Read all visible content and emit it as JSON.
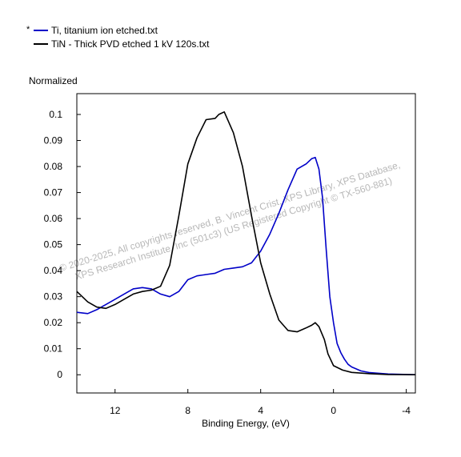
{
  "legend": {
    "marker": "*",
    "entries": [
      {
        "label": "Ti, titanium ion etched.txt",
        "color": "#0000c8"
      },
      {
        "label": "TiN - Thick PVD etched 1 kV 120s.txt",
        "color": "#000000"
      }
    ]
  },
  "watermark": {
    "line1": "©  2020-2025,  All copyrights reserved,   B. Vincent Crist,  XPS Library, XPS Database,",
    "line2": "XPS Research Institute, Inc (501c3)   (US Registered Copyright © TX-560-881)"
  },
  "chart_data": {
    "type": "line",
    "title": "",
    "xlabel": "Binding Energy, (eV)",
    "ylabel": "Normalized",
    "xlim": [
      14.1,
      -4.5
    ],
    "x_reversed": true,
    "ylim": [
      -0.007,
      0.108
    ],
    "xticks": [
      12,
      8,
      4,
      0,
      -4
    ],
    "xtick_labels": [
      "12",
      "8",
      "4",
      "0",
      "-4"
    ],
    "yticks": [
      0,
      0.01,
      0.02,
      0.03,
      0.04,
      0.05,
      0.06,
      0.07,
      0.08,
      0.09,
      0.1
    ],
    "ytick_labels": [
      "0",
      "0.01",
      "0.02",
      "0.03",
      "0.04",
      "0.05",
      "0.06",
      "0.07",
      "0.08",
      "0.09",
      "0.1"
    ],
    "grid": false,
    "legend_position": "top-left",
    "series": [
      {
        "name": "Ti, titanium ion etched.txt",
        "color": "#0000c8",
        "x": [
          14.1,
          13.5,
          13.0,
          12.5,
          12.0,
          11.5,
          11.0,
          10.5,
          10.0,
          9.5,
          9.0,
          8.5,
          8.0,
          7.5,
          7.0,
          6.5,
          6.0,
          5.5,
          5.0,
          4.5,
          4.0,
          3.5,
          3.0,
          2.5,
          2.0,
          1.5,
          1.2,
          1.0,
          0.8,
          0.6,
          0.4,
          0.2,
          0.0,
          -0.2,
          -0.4,
          -0.6,
          -0.8,
          -1.0,
          -1.5,
          -2.0,
          -3.0,
          -4.5
        ],
        "y": [
          0.024,
          0.0235,
          0.025,
          0.027,
          0.029,
          0.031,
          0.033,
          0.0335,
          0.033,
          0.031,
          0.03,
          0.032,
          0.0365,
          0.038,
          0.0385,
          0.039,
          0.0405,
          0.041,
          0.0415,
          0.043,
          0.0475,
          0.054,
          0.062,
          0.071,
          0.079,
          0.081,
          0.083,
          0.0835,
          0.079,
          0.068,
          0.048,
          0.03,
          0.02,
          0.012,
          0.0085,
          0.006,
          0.004,
          0.003,
          0.0015,
          0.0008,
          0.0003,
          0.0
        ]
      },
      {
        "name": "TiN - Thick PVD etched 1 kV 120s.txt",
        "color": "#000000",
        "x": [
          14.1,
          13.5,
          13.0,
          12.5,
          12.0,
          11.5,
          11.0,
          10.5,
          10.0,
          9.5,
          9.0,
          8.5,
          8.0,
          7.5,
          7.0,
          6.5,
          6.3,
          6.0,
          5.5,
          5.0,
          4.5,
          4.0,
          3.5,
          3.0,
          2.5,
          2.0,
          1.5,
          1.2,
          1.0,
          0.8,
          0.5,
          0.3,
          0.0,
          -0.5,
          -1.0,
          -2.0,
          -3.0,
          -4.5
        ],
        "y": [
          0.032,
          0.028,
          0.026,
          0.0255,
          0.027,
          0.029,
          0.031,
          0.032,
          0.0325,
          0.034,
          0.042,
          0.061,
          0.081,
          0.091,
          0.098,
          0.0985,
          0.1,
          0.101,
          0.093,
          0.08,
          0.061,
          0.043,
          0.031,
          0.021,
          0.017,
          0.0165,
          0.018,
          0.019,
          0.02,
          0.0185,
          0.0135,
          0.008,
          0.0035,
          0.0018,
          0.0009,
          0.0004,
          0.0001,
          0.0
        ]
      }
    ]
  }
}
